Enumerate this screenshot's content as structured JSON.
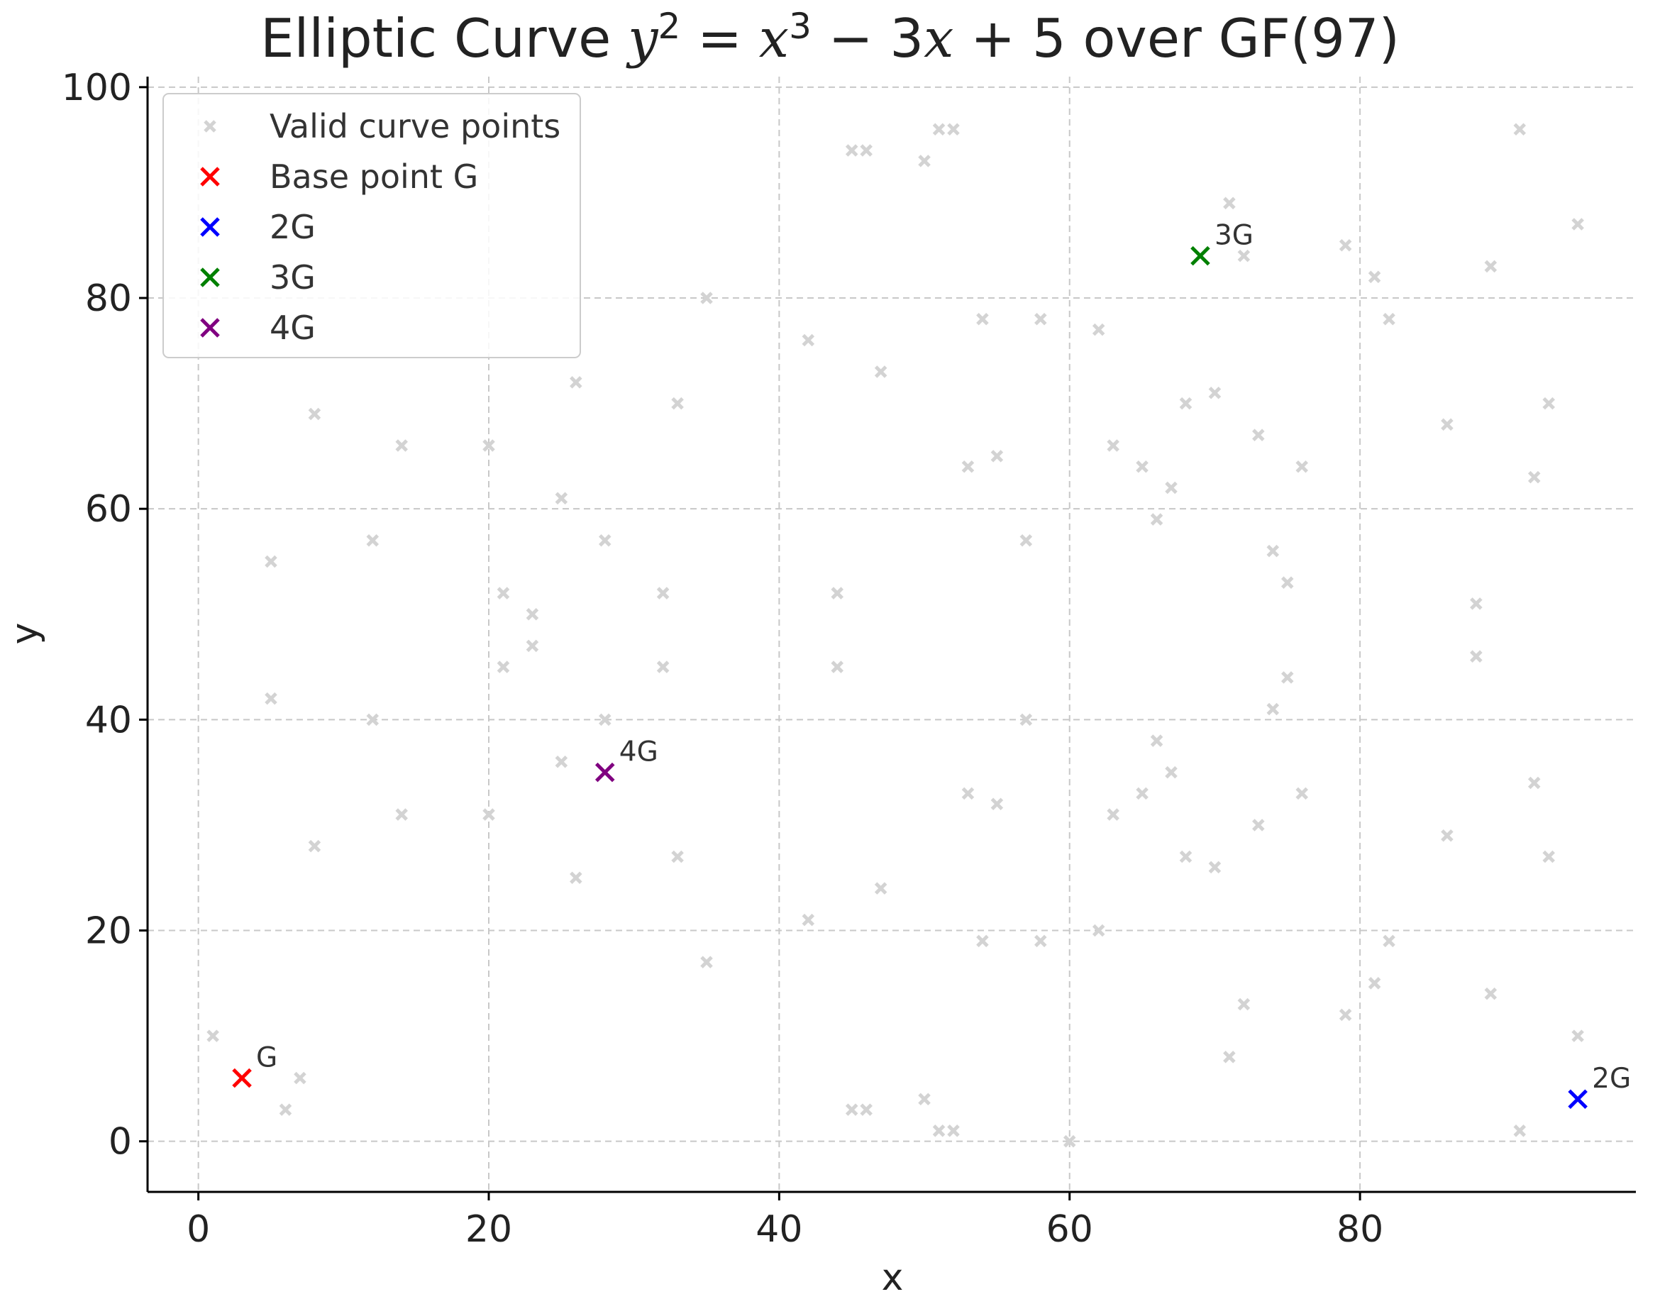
{
  "chart_data": {
    "type": "scatter",
    "title_parts": [
      {
        "text": "Elliptic Curve ",
        "style": "normal"
      },
      {
        "text": "y",
        "style": "italic"
      },
      {
        "text": "2",
        "style": "sup"
      },
      {
        "text": " = ",
        "style": "normal"
      },
      {
        "text": "x",
        "style": "italic"
      },
      {
        "text": "3",
        "style": "sup"
      },
      {
        "text": " − 3",
        "style": "normal"
      },
      {
        "text": "x",
        "style": "italic"
      },
      {
        "text": " + 5 over GF(97)",
        "style": "normal"
      }
    ],
    "xlabel": "x",
    "ylabel": "y",
    "xlim": [
      -3.5,
      99
    ],
    "ylim": [
      -4.8,
      101
    ],
    "xticks": [
      0,
      20,
      40,
      60,
      80
    ],
    "yticks": [
      0,
      20,
      40,
      60,
      80,
      100
    ],
    "grid": true,
    "legend_position": "top-left",
    "series": [
      {
        "name": "Valid curve points",
        "color": "#d3d3d3",
        "marker": "x-small",
        "points": [
          [
            1,
            10
          ],
          [
            5,
            55
          ],
          [
            5,
            42
          ],
          [
            6,
            3
          ],
          [
            7,
            6
          ],
          [
            8,
            69
          ],
          [
            8,
            28
          ],
          [
            12,
            57
          ],
          [
            12,
            40
          ],
          [
            14,
            66
          ],
          [
            14,
            31
          ],
          [
            20,
            66
          ],
          [
            20,
            31
          ],
          [
            21,
            52
          ],
          [
            21,
            45
          ],
          [
            23,
            50
          ],
          [
            23,
            47
          ],
          [
            25,
            61
          ],
          [
            25,
            36
          ],
          [
            26,
            72
          ],
          [
            26,
            25
          ],
          [
            28,
            57
          ],
          [
            28,
            40
          ],
          [
            32,
            52
          ],
          [
            32,
            45
          ],
          [
            33,
            70
          ],
          [
            33,
            27
          ],
          [
            35,
            80
          ],
          [
            35,
            17
          ],
          [
            42,
            76
          ],
          [
            42,
            21
          ],
          [
            44,
            52
          ],
          [
            44,
            45
          ],
          [
            45,
            94
          ],
          [
            45,
            3
          ],
          [
            46,
            94
          ],
          [
            46,
            3
          ],
          [
            47,
            73
          ],
          [
            47,
            24
          ],
          [
            50,
            93
          ],
          [
            50,
            4
          ],
          [
            51,
            96
          ],
          [
            51,
            1
          ],
          [
            52,
            96
          ],
          [
            52,
            1
          ],
          [
            53,
            64
          ],
          [
            53,
            33
          ],
          [
            54,
            78
          ],
          [
            54,
            19
          ],
          [
            55,
            65
          ],
          [
            55,
            32
          ],
          [
            57,
            57
          ],
          [
            57,
            40
          ],
          [
            58,
            78
          ],
          [
            58,
            19
          ],
          [
            60,
            0
          ],
          [
            62,
            77
          ],
          [
            62,
            20
          ],
          [
            63,
            66
          ],
          [
            63,
            31
          ],
          [
            65,
            64
          ],
          [
            65,
            33
          ],
          [
            66,
            59
          ],
          [
            66,
            38
          ],
          [
            67,
            62
          ],
          [
            67,
            35
          ],
          [
            68,
            70
          ],
          [
            68,
            27
          ],
          [
            70,
            71
          ],
          [
            70,
            26
          ],
          [
            71,
            89
          ],
          [
            71,
            8
          ],
          [
            72,
            84
          ],
          [
            72,
            13
          ],
          [
            73,
            67
          ],
          [
            73,
            30
          ],
          [
            74,
            56
          ],
          [
            74,
            41
          ],
          [
            75,
            53
          ],
          [
            75,
            44
          ],
          [
            76,
            64
          ],
          [
            76,
            33
          ],
          [
            79,
            85
          ],
          [
            79,
            12
          ],
          [
            81,
            82
          ],
          [
            81,
            15
          ],
          [
            82,
            78
          ],
          [
            82,
            19
          ],
          [
            86,
            68
          ],
          [
            86,
            29
          ],
          [
            88,
            51
          ],
          [
            88,
            46
          ],
          [
            89,
            83
          ],
          [
            89,
            14
          ],
          [
            91,
            96
          ],
          [
            91,
            1
          ],
          [
            92,
            63
          ],
          [
            92,
            34
          ],
          [
            93,
            70
          ],
          [
            93,
            27
          ],
          [
            95,
            87
          ],
          [
            95,
            10
          ]
        ]
      },
      {
        "name": "Base point G",
        "color": "#ff0000",
        "marker": "x-large",
        "points": [
          [
            3,
            6
          ]
        ],
        "point_label": "G"
      },
      {
        "name": "2G",
        "color": "#0000ff",
        "marker": "x-large",
        "points": [
          [
            95,
            4
          ]
        ],
        "point_label": "2G"
      },
      {
        "name": "3G",
        "color": "#008000",
        "marker": "x-large",
        "points": [
          [
            69,
            84
          ]
        ],
        "point_label": "3G"
      },
      {
        "name": "4G",
        "color": "#800080",
        "marker": "x-large",
        "points": [
          [
            28,
            35
          ]
        ],
        "point_label": "4G"
      }
    ]
  }
}
